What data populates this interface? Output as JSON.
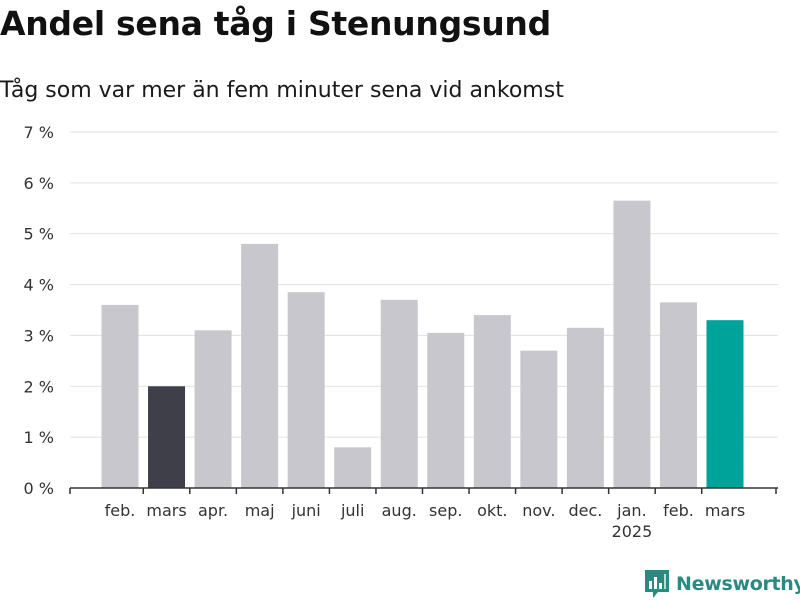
{
  "header": {
    "title": "Andel sena tåg i Stenungsund",
    "subtitle": "Tåg som var mer än fem minuter sena vid ankomst"
  },
  "brand": {
    "name": "Newsworthy",
    "icon": "bar-chart-logo-icon",
    "color": "#2a8a82"
  },
  "chart_data": {
    "type": "bar",
    "categories": [
      "feb.",
      "mars",
      "apr.",
      "maj",
      "juni",
      "juli",
      "aug.",
      "sep.",
      "okt.",
      "nov.",
      "dec.",
      "jan.",
      "feb.",
      "mars"
    ],
    "category_sublabels": [
      "",
      "",
      "",
      "",
      "",
      "",
      "",
      "",
      "",
      "",
      "",
      "2025",
      "",
      ""
    ],
    "values": [
      3.6,
      2.0,
      3.1,
      4.8,
      3.85,
      0.8,
      3.7,
      3.05,
      3.4,
      2.7,
      3.15,
      5.65,
      3.65,
      3.3
    ],
    "value_unit": "%",
    "ylim": [
      0,
      7
    ],
    "yticks": [
      0,
      1,
      2,
      3,
      4,
      5,
      6,
      7
    ],
    "ytick_labels": [
      "0 %",
      "1 %",
      "2 %",
      "3 %",
      "4 %",
      "5 %",
      "6 %",
      "7 %"
    ],
    "grid": true,
    "colors": {
      "default": "#c8c7cd",
      "highlight": "#3f3f4a",
      "current": "#00a39a"
    },
    "bar_color_roles": [
      "default",
      "highlight",
      "default",
      "default",
      "default",
      "default",
      "default",
      "default",
      "default",
      "default",
      "default",
      "default",
      "default",
      "current"
    ]
  }
}
